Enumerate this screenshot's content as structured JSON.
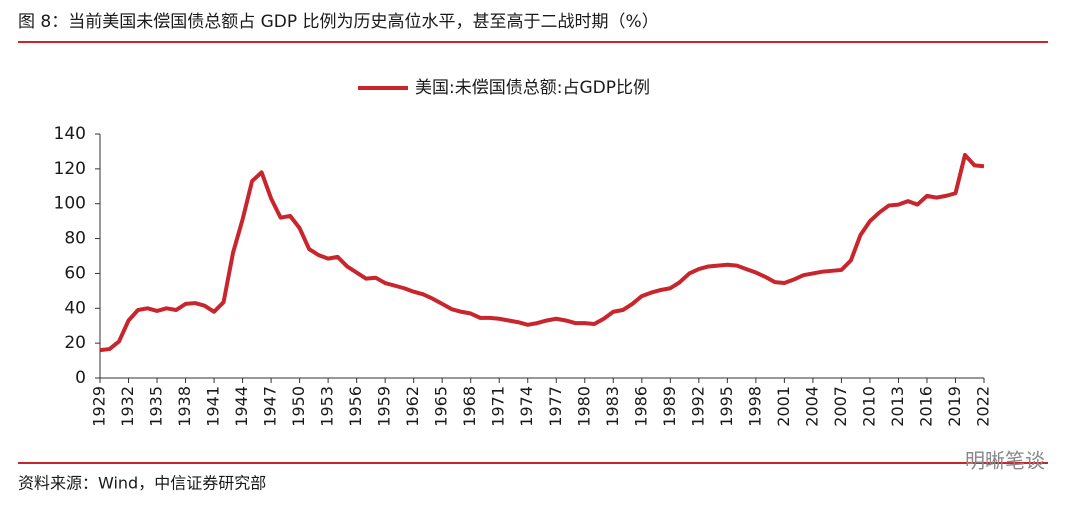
{
  "chart_data": {
    "type": "line",
    "title": "图 8：当前美国未偿国债总额占 GDP 比例为历史高位水平，甚至高于二战时期（%）",
    "source": "资料来源：Wind，中信证券研究部",
    "watermark": "明晰笔谈",
    "x": [
      1929,
      1930,
      1931,
      1932,
      1933,
      1934,
      1935,
      1936,
      1937,
      1938,
      1939,
      1940,
      1941,
      1942,
      1943,
      1944,
      1945,
      1946,
      1947,
      1948,
      1949,
      1950,
      1951,
      1952,
      1953,
      1954,
      1955,
      1956,
      1957,
      1958,
      1959,
      1960,
      1961,
      1962,
      1963,
      1964,
      1965,
      1966,
      1967,
      1968,
      1969,
      1970,
      1971,
      1972,
      1973,
      1974,
      1975,
      1976,
      1977,
      1978,
      1979,
      1980,
      1981,
      1982,
      1983,
      1984,
      1985,
      1986,
      1987,
      1988,
      1989,
      1990,
      1991,
      1992,
      1993,
      1994,
      1995,
      1996,
      1997,
      1998,
      1999,
      2000,
      2001,
      2002,
      2003,
      2004,
      2005,
      2006,
      2007,
      2008,
      2009,
      2010,
      2011,
      2012,
      2013,
      2014,
      2015,
      2016,
      2017,
      2018,
      2019,
      2020,
      2021,
      2022
    ],
    "series": [
      {
        "name": "美国:未偿国债总额:占GDP比例",
        "color": "#c8252c",
        "values": [
          16,
          16.6,
          21,
          33,
          39,
          40,
          38.5,
          40,
          39,
          42.5,
          43,
          41.5,
          38,
          43.5,
          72,
          91,
          113,
          118,
          103,
          92,
          93,
          86,
          74,
          70.5,
          68.5,
          69.5,
          64,
          60.5,
          57,
          57.5,
          54.5,
          53,
          51.5,
          49.5,
          48,
          45.5,
          42.5,
          39.5,
          38,
          37,
          34.5,
          34.5,
          34,
          33,
          32,
          30.5,
          31.5,
          33,
          34,
          33,
          31.5,
          31.5,
          31,
          34,
          38,
          39,
          42.5,
          47,
          49,
          50.5,
          51.5,
          55,
          60,
          62.5,
          64,
          64.5,
          65,
          64.5,
          62.5,
          60.5,
          58,
          55,
          54.5,
          56.5,
          59,
          60,
          61,
          61.5,
          62,
          67.5,
          82,
          90,
          95,
          99,
          99.5,
          101.5,
          99.5,
          104.5,
          103.5,
          104.5,
          106,
          128,
          122,
          121.5
        ]
      }
    ],
    "xlim": [
      1929,
      2022
    ],
    "xticks": [
      1929,
      1932,
      1935,
      1938,
      1941,
      1944,
      1947,
      1950,
      1953,
      1956,
      1959,
      1962,
      1965,
      1968,
      1971,
      1974,
      1977,
      1980,
      1983,
      1986,
      1989,
      1992,
      1995,
      1998,
      2001,
      2004,
      2007,
      2010,
      2013,
      2016,
      2019,
      2022
    ],
    "ylim": [
      0,
      140
    ],
    "yticks": [
      0,
      20,
      40,
      60,
      80,
      100,
      120,
      140
    ],
    "grid": false
  }
}
